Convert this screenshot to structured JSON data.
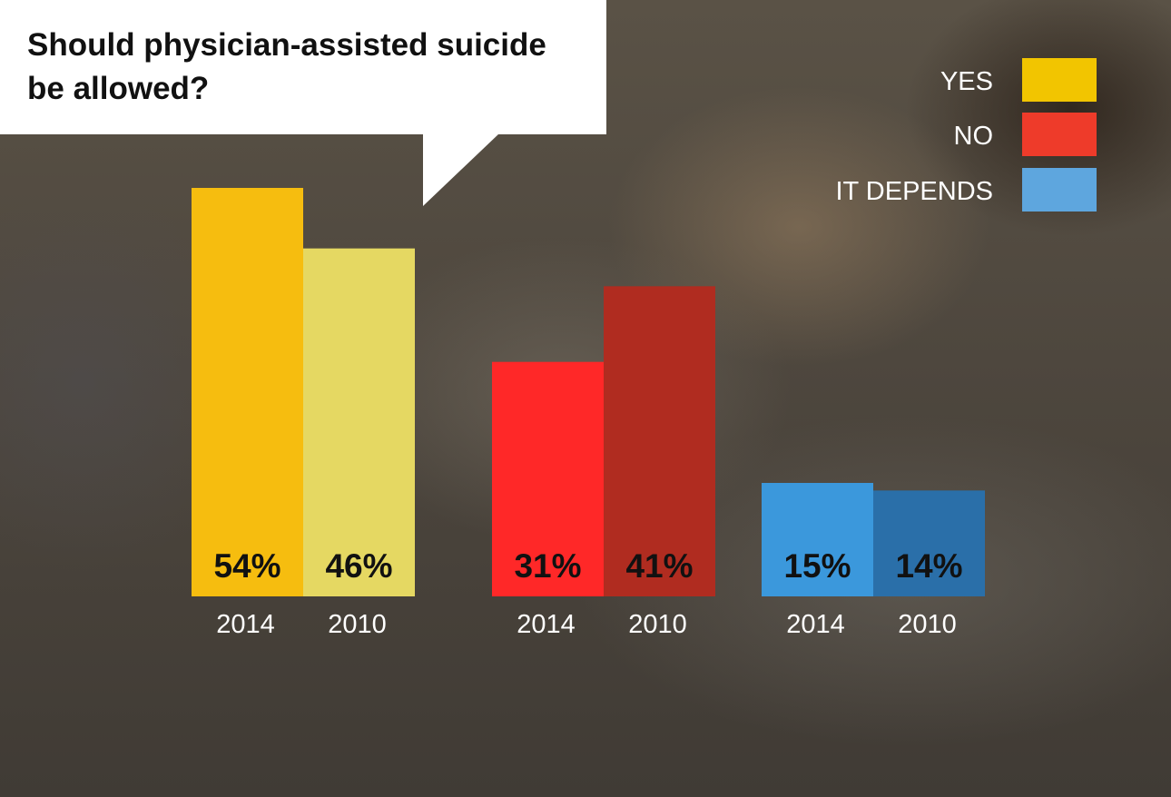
{
  "chart_data": {
    "type": "bar",
    "title": "Should physician-assisted suicide be allowed?",
    "categories": [
      "YES",
      "NO",
      "IT DEPENDS"
    ],
    "years": [
      "2014",
      "2010"
    ],
    "series": [
      {
        "name": "2014",
        "values": [
          54,
          31,
          15
        ],
        "labels": [
          "54%",
          "31%",
          "15%"
        ]
      },
      {
        "name": "2010",
        "values": [
          46,
          41,
          14
        ],
        "labels": [
          "46%",
          "41%",
          "14%"
        ]
      }
    ],
    "ylim": [
      0,
      54
    ],
    "legend": {
      "position": "top-right",
      "items": [
        {
          "label": "YES",
          "color": "#f2c500"
        },
        {
          "label": "NO",
          "color": "#ee3b2a"
        },
        {
          "label": "IT DEPENDS",
          "color": "#5ea6de"
        }
      ]
    },
    "bar_colors": [
      {
        "2014": "#f6bd0f",
        "2010": "#e5d862"
      },
      {
        "2014": "#ff2828",
        "2010": "#b02c20"
      },
      {
        "2014": "#3b98dc",
        "2010": "#2a6fa9"
      }
    ],
    "grid": false
  }
}
